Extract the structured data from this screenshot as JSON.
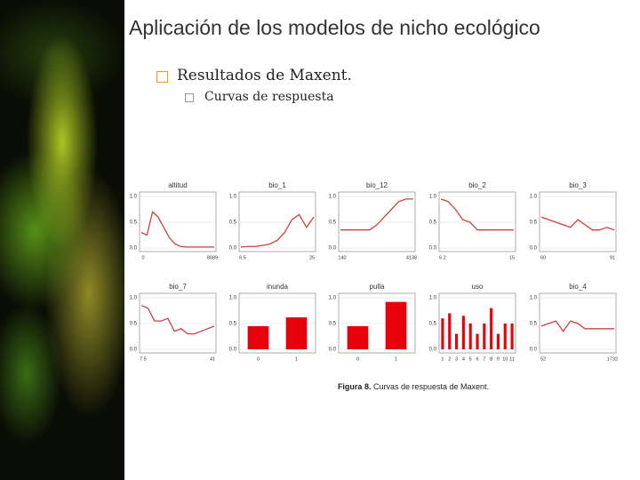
{
  "title": "Aplicación de los modelos de nicho ecológico",
  "bullet": "Resultados de Maxent.",
  "sub_bullet": "Curvas de respuesta",
  "line_color": "#d04040",
  "bar_color": "#e8000a",
  "panels": [
    {
      "type": "line",
      "title": "altitud",
      "yticks": [
        {
          "value": 1,
          "label": "1.0"
        },
        {
          "value": 0.5,
          "label": "0.5"
        },
        {
          "value": 0,
          "label": "0.0"
        }
      ],
      "xticks": [
        "0",
        "8089"
      ],
      "values": [
        0.3,
        0.25,
        0.7,
        0.6,
        0.4,
        0.2,
        0.08,
        0.03,
        0.02,
        0.02,
        0.02,
        0.02,
        0.02,
        0.02
      ]
    },
    {
      "type": "line",
      "title": "bio_1",
      "yticks": [
        {
          "value": 1,
          "label": "1.0"
        },
        {
          "value": 0.5,
          "label": "0.5"
        },
        {
          "value": 0,
          "label": "0.0"
        }
      ],
      "xticks": [
        "6.5",
        "25"
      ],
      "values": [
        0.02,
        0.03,
        0.03,
        0.05,
        0.08,
        0.15,
        0.3,
        0.55,
        0.65,
        0.4,
        0.6
      ]
    },
    {
      "type": "line",
      "title": "bio_12",
      "yticks": [
        {
          "value": 1,
          "label": "1.0"
        },
        {
          "value": 0.5,
          "label": "0.5"
        },
        {
          "value": 0,
          "label": "0.0"
        }
      ],
      "xticks": [
        "140",
        "4138"
      ],
      "values": [
        0.35,
        0.35,
        0.35,
        0.35,
        0.35,
        0.45,
        0.6,
        0.75,
        0.9,
        0.95,
        0.95
      ]
    },
    {
      "type": "line",
      "title": "bio_2",
      "yticks": [
        {
          "value": 1,
          "label": "1.0"
        },
        {
          "value": 0.5,
          "label": "0.5"
        },
        {
          "value": 0,
          "label": "0.0"
        }
      ],
      "xticks": [
        "6.2",
        "15"
      ],
      "values": [
        0.95,
        0.9,
        0.75,
        0.55,
        0.5,
        0.35,
        0.35,
        0.35,
        0.35,
        0.35,
        0.35
      ]
    },
    {
      "type": "line",
      "title": "bio_3",
      "yticks": [
        {
          "value": 1,
          "label": "1.0"
        },
        {
          "value": 0.5,
          "label": "0.5"
        },
        {
          "value": 0,
          "label": "0.0"
        }
      ],
      "xticks": [
        "60",
        "91"
      ],
      "values": [
        0.6,
        0.55,
        0.5,
        0.45,
        0.4,
        0.55,
        0.45,
        0.35,
        0.35,
        0.4,
        0.35
      ]
    },
    {
      "type": "line",
      "title": "bio_7",
      "yticks": [
        {
          "value": 1,
          "label": "1.0"
        },
        {
          "value": 0.5,
          "label": "0.5"
        },
        {
          "value": 0,
          "label": "0.0"
        }
      ],
      "xticks": [
        "7.5",
        "41"
      ],
      "values": [
        0.85,
        0.8,
        0.55,
        0.55,
        0.6,
        0.35,
        0.4,
        0.3,
        0.3,
        0.35,
        0.4,
        0.45
      ]
    },
    {
      "type": "bar",
      "title": "inunda",
      "yticks": [
        {
          "value": 1,
          "label": "1.0"
        },
        {
          "value": 0.5,
          "label": "0.5"
        },
        {
          "value": 0,
          "label": "0.0"
        }
      ],
      "xticks": [
        "0",
        "1"
      ],
      "values": [
        0.45,
        0.62
      ]
    },
    {
      "type": "bar",
      "title": "pulla",
      "yticks": [
        {
          "value": 1,
          "label": "1.0"
        },
        {
          "value": 0.5,
          "label": "0.5"
        },
        {
          "value": 0,
          "label": "0.0"
        }
      ],
      "xticks": [
        "0",
        "1"
      ],
      "values": [
        0.45,
        0.92
      ]
    },
    {
      "type": "bar",
      "title": "uso",
      "yticks": [
        {
          "value": 1,
          "label": "1.0"
        },
        {
          "value": 0.5,
          "label": "0.5"
        },
        {
          "value": 0,
          "label": "0.0"
        }
      ],
      "xticks": [
        "1",
        "2",
        "3",
        "4",
        "5",
        "6",
        "7",
        "8",
        "9",
        "10",
        "11"
      ],
      "values": [
        0.6,
        0.7,
        0.3,
        0.65,
        0.5,
        0.3,
        0.5,
        0.8,
        0.3,
        0.5,
        0.5
      ]
    },
    {
      "type": "line",
      "title": "bio_4",
      "yticks": [
        {
          "value": 1,
          "label": "1.0"
        },
        {
          "value": 0.5,
          "label": "0.5"
        },
        {
          "value": 0,
          "label": "0.0"
        }
      ],
      "xticks": [
        "52",
        "1732"
      ],
      "values": [
        0.45,
        0.5,
        0.55,
        0.35,
        0.55,
        0.5,
        0.4,
        0.4,
        0.4,
        0.4,
        0.4
      ]
    }
  ],
  "caption": {
    "label": "Figura 8.",
    "text": "Curvas de respuesta de Maxent."
  }
}
